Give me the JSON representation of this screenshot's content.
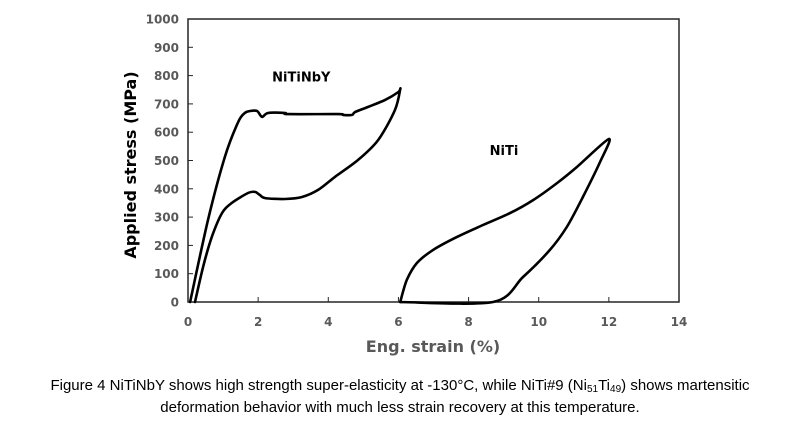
{
  "chart_data": {
    "type": "line",
    "title": "",
    "xlabel": "Eng. strain (%)",
    "ylabel": "Applied stress (MPa)",
    "xlim": [
      0,
      14
    ],
    "ylim": [
      0,
      1000
    ],
    "xticks": [
      0,
      2,
      4,
      6,
      8,
      10,
      12,
      14
    ],
    "yticks": [
      0,
      100,
      200,
      300,
      400,
      500,
      600,
      700,
      800,
      900,
      1000
    ],
    "grid": false,
    "legend": "none",
    "annotations": [
      {
        "text": "NiTiNbY",
        "x": 2.4,
        "y": 780
      },
      {
        "text": "NiTi",
        "x": 8.6,
        "y": 520
      }
    ],
    "series": [
      {
        "name": "NiTiNbY",
        "color": "#000000",
        "x": [
          0.06,
          0.57,
          1.05,
          1.43,
          1.62,
          1.77,
          1.97,
          2.11,
          2.28,
          2.77,
          2.85,
          4.28,
          4.42,
          4.68,
          4.76,
          5.13,
          5.62,
          6.0,
          6.05,
          5.9,
          5.42,
          4.85,
          4.19,
          3.71,
          3.25,
          2.77,
          2.2,
          2.05,
          1.91,
          1.71,
          1.25,
          0.97,
          0.68,
          0.43,
          0.2
        ],
        "y": [
          0,
          290,
          512,
          636,
          668,
          675,
          675,
          654,
          668,
          668,
          664,
          664,
          661,
          661,
          671,
          689,
          714,
          742,
          752,
          678,
          572,
          502,
          442,
          396,
          371,
          364,
          367,
          378,
          389,
          385,
          350,
          314,
          230,
          124,
          0
        ]
      },
      {
        "name": "NiTi",
        "color": "#000000",
        "x": [
          6.05,
          6.24,
          6.53,
          6.99,
          7.67,
          8.41,
          9.18,
          9.84,
          10.52,
          11.09,
          12.0,
          11.75,
          11.26,
          10.8,
          10.32,
          9.55,
          8.7,
          6.05
        ],
        "y": [
          0,
          78,
          138,
          184,
          230,
          272,
          314,
          360,
          420,
          477,
          576,
          495,
          371,
          265,
          184,
          88,
          0,
          0
        ]
      }
    ]
  },
  "caption": {
    "line1_pre": "Figure 4 NiTiNbY shows high strength super-elasticity at -130°C, while NiTi#9 (Ni",
    "sub1": "51",
    "mid": "Ti",
    "sub2": "49",
    "line1_post": ") shows martensitic",
    "line2": "deformation behavior with much less strain recovery at this temperature."
  }
}
